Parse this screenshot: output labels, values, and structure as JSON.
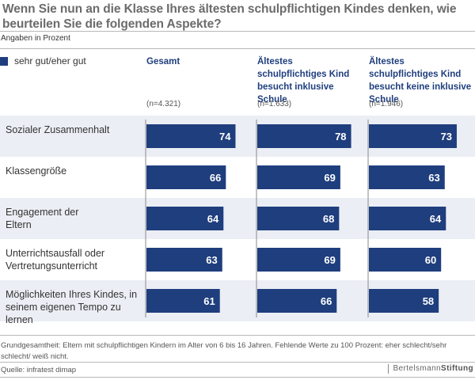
{
  "header": {
    "title": "Wenn Sie nun an die Klasse Ihres ältesten schulpflichtigen Kindes denken, wie beurteilen Sie die folgenden Aspekte?",
    "subtitle": "Angaben in Prozent"
  },
  "legend": {
    "label": "sehr gut/eher gut",
    "color": "#1f3e7e"
  },
  "columns": [
    {
      "title": "Gesamt",
      "n": "(n=4.321)"
    },
    {
      "title": "Ältestes schulpflichtiges Kind besucht inklusive Schule",
      "n": "(n=1.633)"
    },
    {
      "title": "Ältestes schulpflichtiges Kind besucht keine inklusive Schule",
      "n": "(n=1.946)"
    }
  ],
  "rows": [
    {
      "label": "Sozialer Zusammenhalt"
    },
    {
      "label": "Klassengröße"
    },
    {
      "label": "Engagement der Eltern"
    },
    {
      "label": "Unterrichtsausfall oder Vertretungsunterricht"
    },
    {
      "label": "Möglichkeiten Ihres Kindes, in seinem eigenen Tempo zu lernen"
    }
  ],
  "chart_data": {
    "type": "bar",
    "orientation": "horizontal",
    "title": "Wenn Sie nun an die Klasse Ihres ältesten schulpflichtigen Kindes denken, wie beurteilen Sie die folgenden Aspekte?",
    "subtitle": "Angaben in Prozent",
    "categories": [
      "Sozialer Zusammenhalt",
      "Klassengröße",
      "Engagement der Eltern",
      "Unterrichtsausfall oder Vertretungsunterricht",
      "Möglichkeiten Ihres Kindes, in seinem eigenen Tempo zu lernen"
    ],
    "series": [
      {
        "name": "Gesamt (n=4.321)",
        "values": [
          74,
          66,
          64,
          63,
          61
        ]
      },
      {
        "name": "Ältestes schulpflichtiges Kind besucht inklusive Schule (n=1.633)",
        "values": [
          78,
          69,
          68,
          69,
          66
        ]
      },
      {
        "name": "Ältestes schulpflichtiges Kind besucht keine inklusive Schule (n=1.946)",
        "values": [
          73,
          63,
          64,
          60,
          58
        ]
      }
    ],
    "legend": [
      "sehr gut/eher gut"
    ],
    "xlim": [
      0,
      100
    ],
    "grid": false,
    "data_labels": true
  },
  "footer": {
    "note": "Grundgesamtheit: Eltern mit schulpflichtigen Kindern im Alter von 6 bis 16 Jahren. Fehlende Werte zu 100 Prozent: eher schlecht/sehr schlecht/ weiß nicht.",
    "source": "Quelle: infratest dimap",
    "logo_part1": "Bertelsmann",
    "logo_part2": "Stiftung"
  }
}
